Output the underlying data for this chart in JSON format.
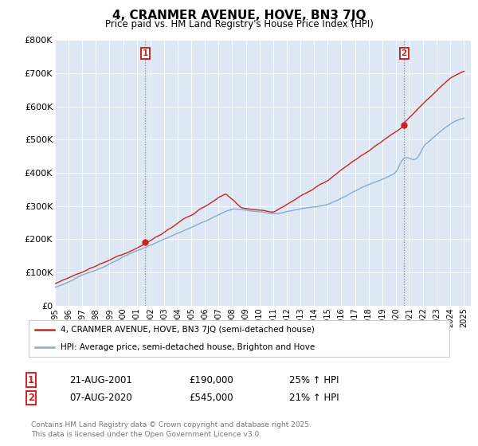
{
  "title": "4, CRANMER AVENUE, HOVE, BN3 7JQ",
  "subtitle": "Price paid vs. HM Land Registry's House Price Index (HPI)",
  "red_color": "#cc2222",
  "blue_color": "#88aacc",
  "plot_bg_color": "#dde8f4",
  "marker1_year": 2001.63,
  "marker2_year": 2020.6,
  "marker1_value": 190000,
  "marker2_value": 545000,
  "legend_red": "4, CRANMER AVENUE, HOVE, BN3 7JQ (semi-detached house)",
  "legend_blue": "HPI: Average price, semi-detached house, Brighton and Hove",
  "ann1_box": "1",
  "ann1_date": "21-AUG-2001",
  "ann1_price": "£190,000",
  "ann1_pct": "25% ↑ HPI",
  "ann2_box": "2",
  "ann2_date": "07-AUG-2020",
  "ann2_price": "£545,000",
  "ann2_pct": "21% ↑ HPI",
  "footer": "Contains HM Land Registry data © Crown copyright and database right 2025.\nThis data is licensed under the Open Government Licence v3.0.",
  "ytick_labels": [
    "£0",
    "£100K",
    "£200K",
    "£300K",
    "£400K",
    "£500K",
    "£600K",
    "£700K",
    "£800K"
  ],
  "ytick_vals": [
    0,
    100000,
    200000,
    300000,
    400000,
    500000,
    600000,
    700000,
    800000
  ],
  "xtick_years": [
    1995,
    1996,
    1997,
    1998,
    1999,
    2000,
    2001,
    2002,
    2003,
    2004,
    2005,
    2006,
    2007,
    2008,
    2009,
    2010,
    2011,
    2012,
    2013,
    2014,
    2015,
    2016,
    2017,
    2018,
    2019,
    2020,
    2021,
    2022,
    2023,
    2024,
    2025
  ]
}
